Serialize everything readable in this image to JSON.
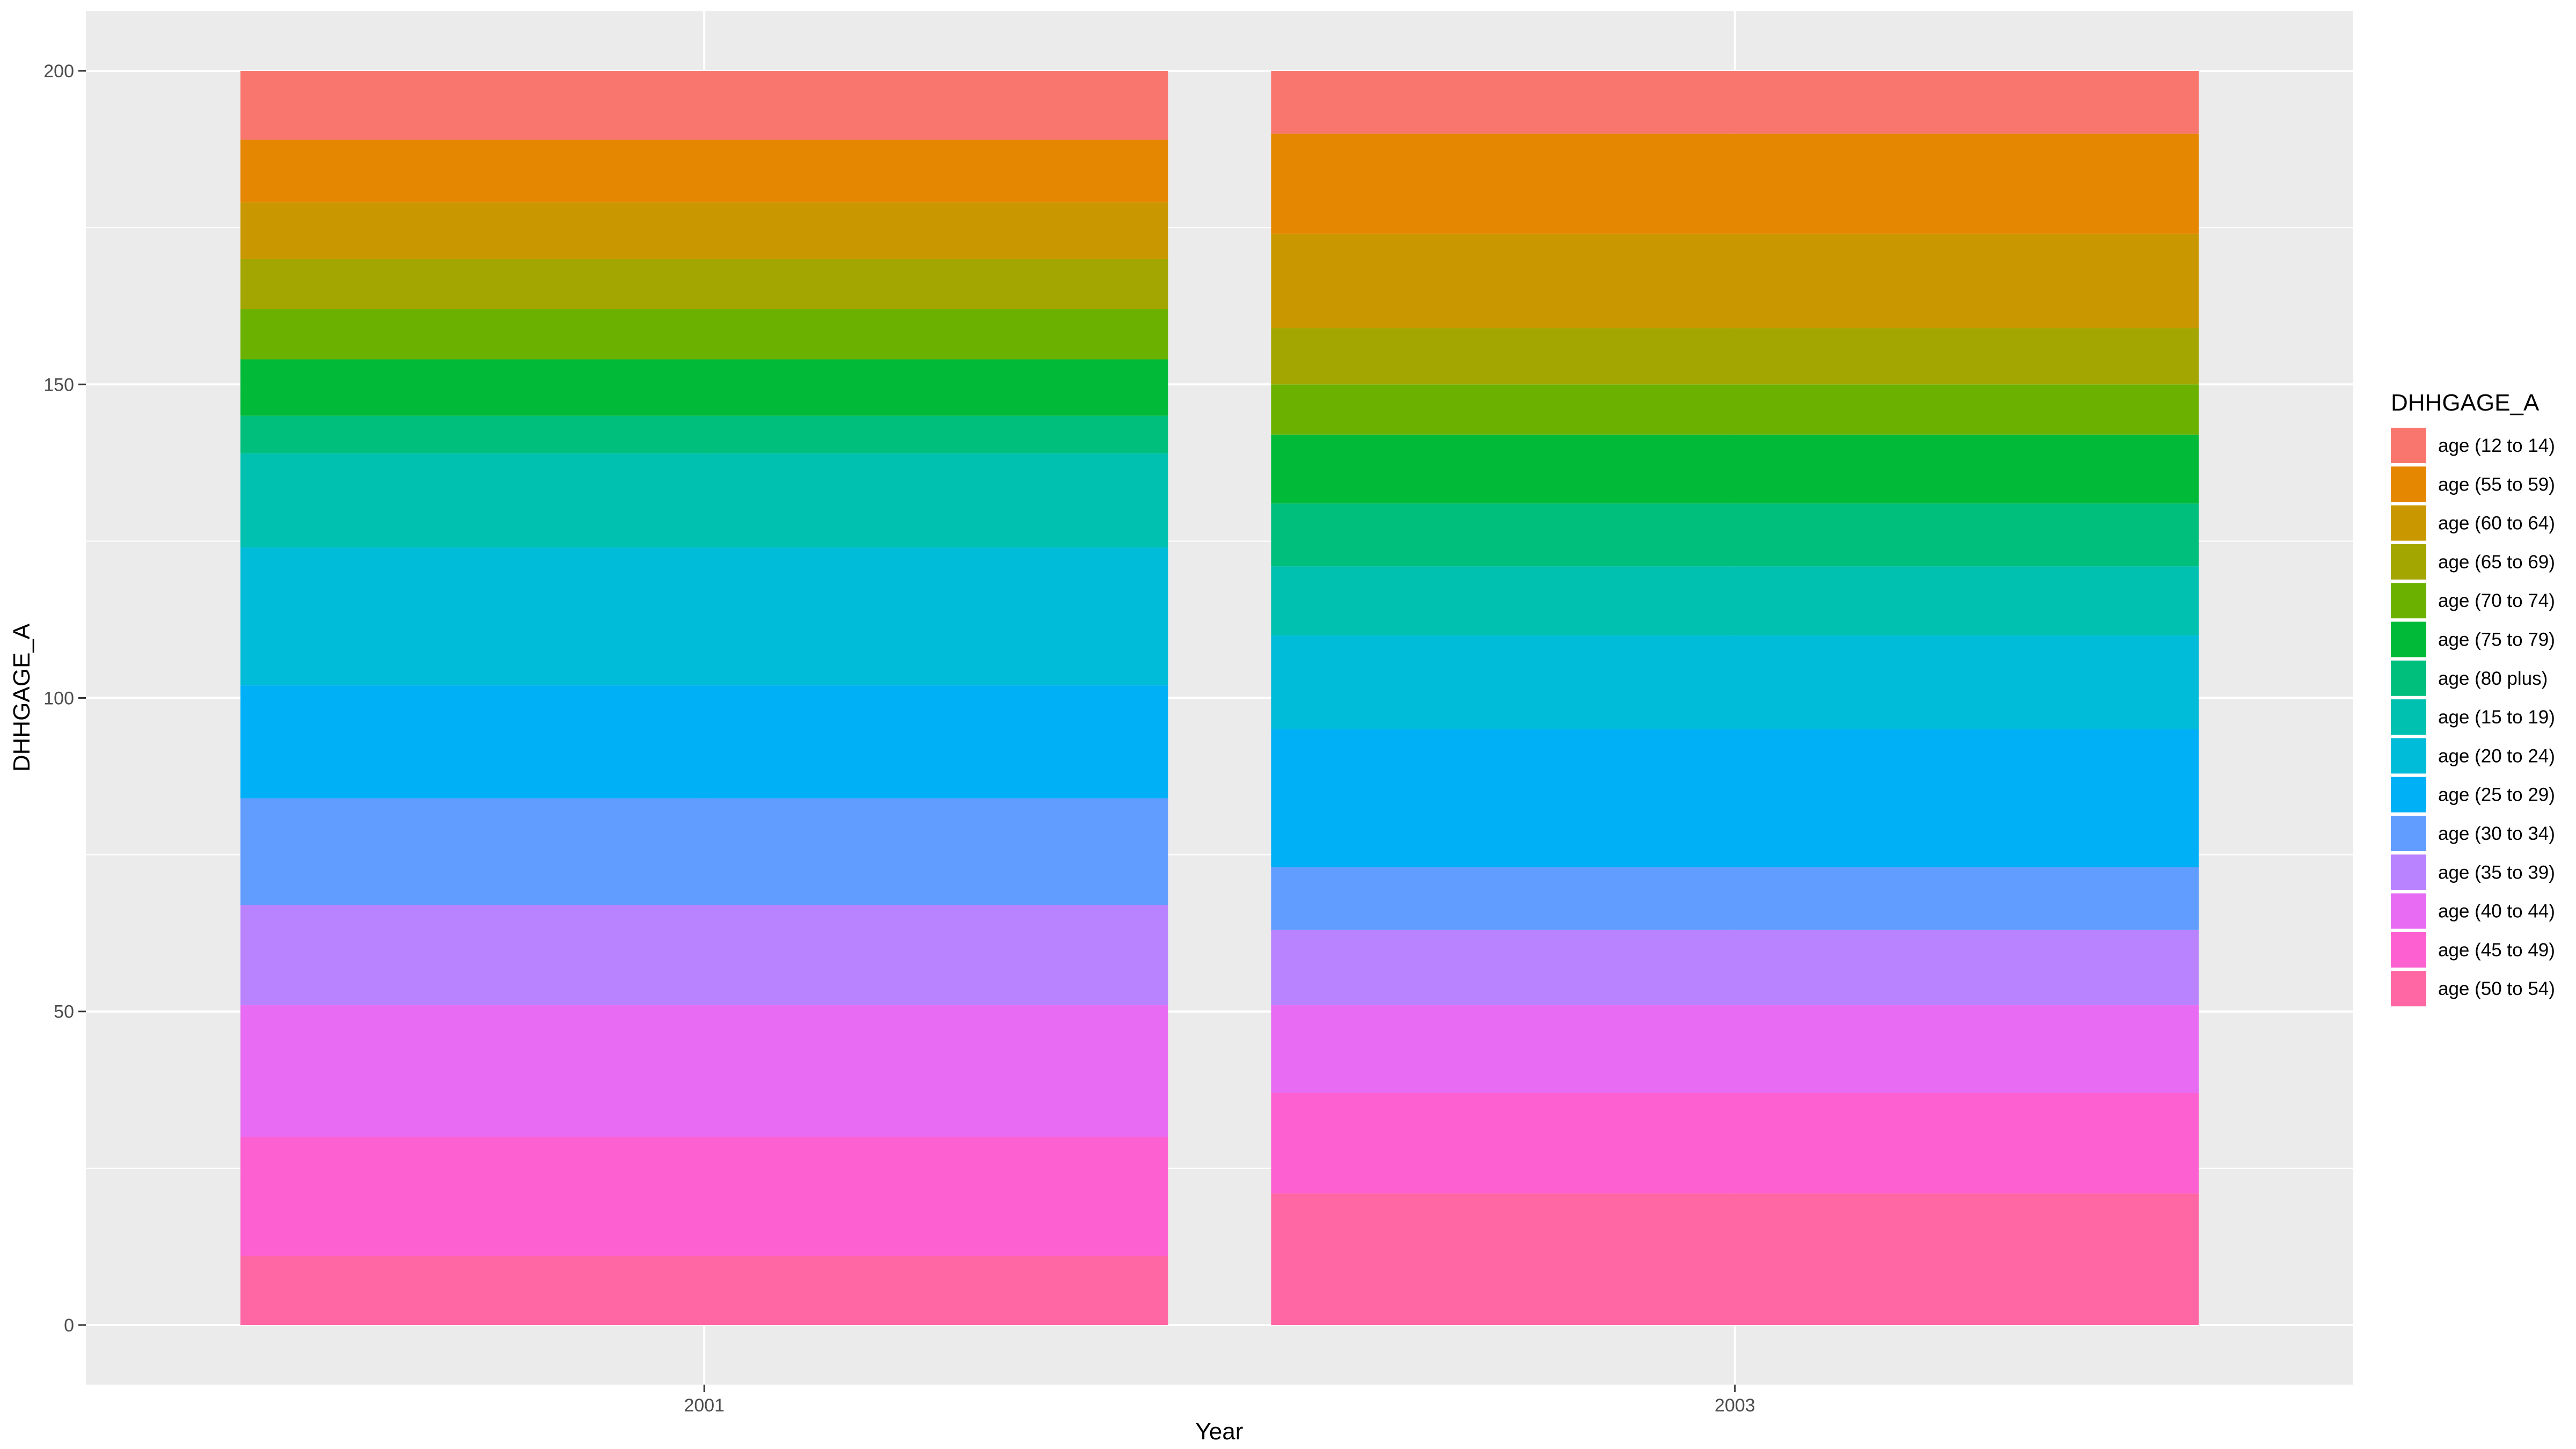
{
  "chart_data": {
    "type": "bar",
    "stacked": true,
    "categories": [
      "2001",
      "2003"
    ],
    "xlabel": "Year",
    "ylabel": "DHHGAGE_A",
    "ylim": [
      -9.5,
      209.5
    ],
    "yticks": [
      0,
      50,
      100,
      150,
      200
    ],
    "grid": true,
    "legend_position": "right",
    "legend_title": "DHHGAGE_A",
    "series": [
      {
        "name": "age (12 to 14)",
        "color": "#F8766D",
        "values": [
          11,
          10
        ]
      },
      {
        "name": "age (55 to 59)",
        "color": "#E58700",
        "values": [
          10,
          16
        ]
      },
      {
        "name": "age (60 to 64)",
        "color": "#C99800",
        "values": [
          9,
          15
        ]
      },
      {
        "name": "age (65 to 69)",
        "color": "#A3A500",
        "values": [
          8,
          9
        ]
      },
      {
        "name": "age (70 to 74)",
        "color": "#6BB100",
        "values": [
          8,
          8
        ]
      },
      {
        "name": "age (75 to 79)",
        "color": "#00BA38",
        "values": [
          9,
          11
        ]
      },
      {
        "name": "age (80 plus)",
        "color": "#00BF7D",
        "values": [
          6,
          10
        ]
      },
      {
        "name": "age (15 to 19)",
        "color": "#00C0AF",
        "values": [
          15,
          11
        ]
      },
      {
        "name": "age (20 to 24)",
        "color": "#00BCD8",
        "values": [
          22,
          15
        ]
      },
      {
        "name": "age (25 to 29)",
        "color": "#00B0F6",
        "values": [
          18,
          22
        ]
      },
      {
        "name": "age (30 to 34)",
        "color": "#619CFF",
        "values": [
          17,
          10
        ]
      },
      {
        "name": "age (35 to 39)",
        "color": "#B983FF",
        "values": [
          16,
          12
        ]
      },
      {
        "name": "age (40 to 44)",
        "color": "#E76BF3",
        "values": [
          21,
          14
        ]
      },
      {
        "name": "age (45 to 49)",
        "color": "#FD61D1",
        "values": [
          19,
          16
        ]
      },
      {
        "name": "age (50 to 54)",
        "color": "#FF67A4",
        "values": [
          11,
          21
        ]
      }
    ]
  }
}
